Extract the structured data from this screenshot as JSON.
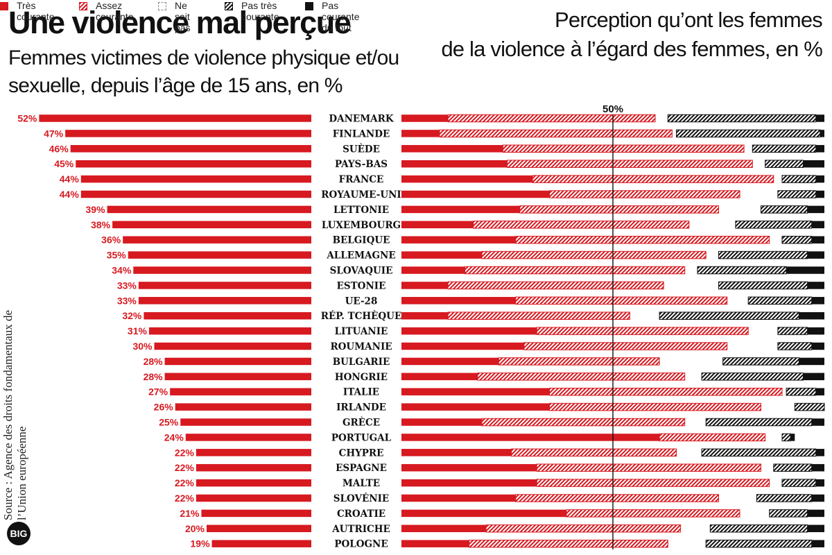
{
  "left_title": "Une violence mal perçue",
  "left_subtitle": "Femmes victimes de violence physique et/ou sexuelle, depuis l’âge de 15 ans, en %",
  "right_title_line1": "Perception qu’ont les femmes",
  "right_title_line2": "de la violence à l’égard des femmes, en %",
  "legend": [
    {
      "label": "Très\ncourante",
      "style": "solid-red"
    },
    {
      "label": "Assez\ncourante",
      "style": "hatch-red"
    },
    {
      "label": "Ne sait\npas",
      "style": "empty"
    },
    {
      "label": "Pas très\ncourante",
      "style": "hatch-black"
    },
    {
      "label": "Pas courante\ndu tout",
      "style": "solid-black"
    }
  ],
  "source": "Source : Agence des droits fondamentaux de l’Union européenne",
  "logo": "BIG",
  "colors": {
    "red": "#d71920",
    "black": "#111111"
  },
  "chart_data": [
    {
      "type": "bar",
      "orientation": "horizontal",
      "title": "Femmes victimes de violence physique et/ou sexuelle, depuis l’âge de 15 ans, en %",
      "categories": [
        "DANEMARK",
        "FINLANDE",
        "SUÈDE",
        "PAYS-BAS",
        "FRANCE",
        "ROYAUME-UNI",
        "LETTONIE",
        "LUXEMBOURG",
        "BELGIQUE",
        "ALLEMAGNE",
        "SLOVAQUIE",
        "ESTONIE",
        "UE-28",
        "RÉP. TCHÈQUE",
        "LITUANIE",
        "ROUMANIE",
        "BULGARIE",
        "HONGRIE",
        "ITALIE",
        "IRLANDE",
        "GRÈCE",
        "PORTUGAL",
        "CHYPRE",
        "ESPAGNE",
        "MALTE",
        "SLOVÉNIE",
        "CROATIE",
        "AUTRICHE",
        "POLOGNE"
      ],
      "values": [
        52,
        47,
        46,
        45,
        44,
        44,
        39,
        38,
        36,
        35,
        34,
        33,
        33,
        32,
        31,
        30,
        28,
        28,
        27,
        26,
        25,
        24,
        22,
        22,
        22,
        22,
        21,
        20,
        19
      ],
      "value_labels": [
        "52%",
        "47%",
        "46%",
        "45%",
        "44%",
        "44%",
        "39%",
        "38%",
        "36%",
        "35%",
        "34%",
        "33%",
        "33%",
        "32%",
        "31%",
        "30%",
        "28%",
        "28%",
        "27%",
        "26%",
        "25%",
        "24%",
        "22%",
        "22%",
        "22%",
        "22%",
        "21%",
        "20%",
        "19%"
      ]
    },
    {
      "type": "bar",
      "orientation": "horizontal",
      "stacked": true,
      "title": "Perception qu’ont les femmes de la violence à l’égard des femmes, en %",
      "reference_label": "50%",
      "reference_value": 50,
      "xlim": [
        0,
        100
      ],
      "series": [
        {
          "name": "Très courante",
          "values": [
            11,
            9,
            24,
            25,
            31,
            35,
            28,
            17,
            27,
            19,
            15,
            11,
            27,
            11,
            32,
            29,
            23,
            18,
            35,
            35,
            19,
            61,
            26,
            32,
            32,
            27,
            39,
            20,
            16
          ]
        },
        {
          "name": "Assez courante",
          "values": [
            49,
            55,
            57,
            58,
            57,
            45,
            47,
            51,
            60,
            53,
            52,
            51,
            50,
            43,
            50,
            48,
            38,
            49,
            55,
            50,
            48,
            25,
            39,
            53,
            55,
            48,
            41,
            46,
            47
          ]
        },
        {
          "name": "Ne sait pas",
          "values": [
            3,
            1,
            2,
            3,
            2,
            9,
            10,
            11,
            3,
            3,
            3,
            13,
            5,
            7,
            7,
            12,
            15,
            4,
            1,
            8,
            5,
            4,
            6,
            3,
            3,
            9,
            7,
            7,
            9
          ]
        },
        {
          "name": "Pas très courante",
          "values": [
            35,
            34,
            15,
            9,
            8,
            9,
            11,
            18,
            7,
            21,
            21,
            21,
            15,
            33,
            7,
            8,
            18,
            24,
            7,
            7,
            25,
            2,
            27,
            9,
            8,
            13,
            9,
            23,
            25
          ]
        },
        {
          "name": "Pas courante du tout",
          "values": [
            2,
            1,
            2,
            5,
            2,
            2,
            4,
            3,
            3,
            4,
            9,
            4,
            3,
            6,
            4,
            3,
            6,
            5,
            2,
            0,
            3,
            1,
            2,
            3,
            2,
            3,
            4,
            4,
            3
          ]
        }
      ]
    }
  ]
}
